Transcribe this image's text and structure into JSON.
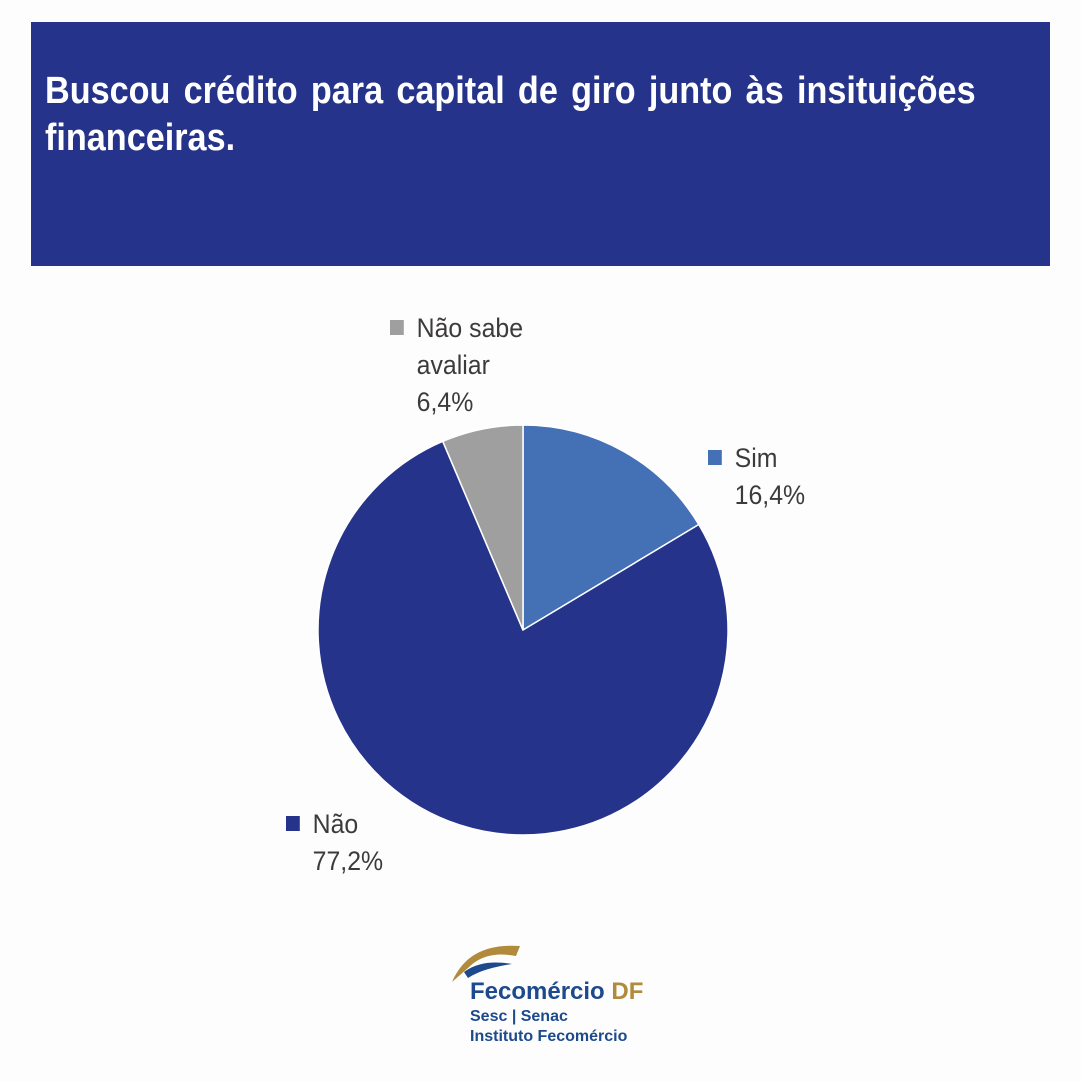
{
  "chart_data": {
    "type": "pie",
    "title": "Buscou crédito para capital de giro junto às insituições financeiras.",
    "slices": [
      {
        "label": "Sim",
        "value": 16.4,
        "value_label": "16,4%",
        "color": "#4470b5"
      },
      {
        "label": "Não",
        "value": 77.2,
        "value_label": "77,2%",
        "color": "#25348a"
      },
      {
        "label": "Não sabe avaliar",
        "value": 6.4,
        "value_label": "6,4%",
        "color": "#a09f9f"
      }
    ],
    "start_angle_deg": 0,
    "direction": "clockwise"
  },
  "logo": {
    "name": "Fecomércio",
    "suffix": "DF",
    "line2": "Sesc | Senac",
    "line3": "Instituto Fecomércio"
  }
}
